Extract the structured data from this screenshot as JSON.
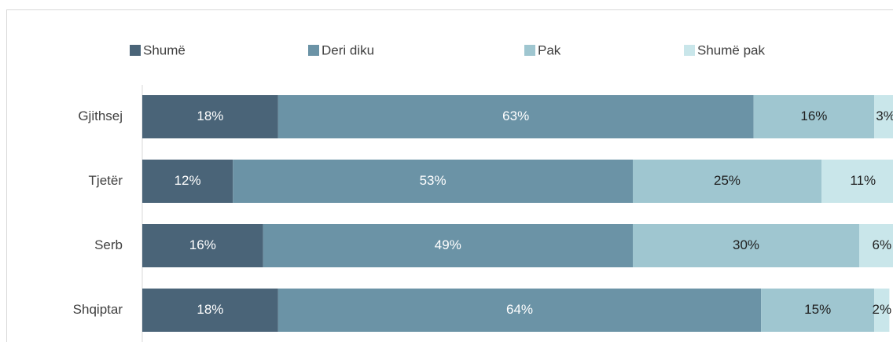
{
  "chart_data": {
    "type": "stacked-barh",
    "categories": [
      "Gjithsej",
      "Tjetër",
      "Serb",
      "Shqiptar"
    ],
    "xlim": [
      0,
      100
    ],
    "legend": "top",
    "series": [
      {
        "name": "Shumë",
        "color": "#4a6478",
        "label_color": "#ffffff",
        "values": [
          18,
          12,
          16,
          18
        ],
        "value_labels": [
          "18%",
          "12%",
          "16%",
          "18%"
        ]
      },
      {
        "name": "Deri diku",
        "color": "#6b93a6",
        "label_color": "#ffffff",
        "values": [
          63,
          53,
          49,
          64
        ],
        "value_labels": [
          "63%",
          "53%",
          "49%",
          "64%"
        ]
      },
      {
        "name": "Pak",
        "color": "#9fc6d0",
        "label_color": "#1f1f1f",
        "values": [
          16,
          25,
          30,
          15
        ],
        "value_labels": [
          "16%",
          "25%",
          "30%",
          "15%"
        ]
      },
      {
        "name": "Shumë pak",
        "color": "#c9e6ea",
        "label_color": "#1f1f1f",
        "values": [
          3,
          11,
          6,
          2
        ],
        "value_labels": [
          "3%",
          "11%",
          "6%",
          "2%"
        ]
      }
    ]
  }
}
